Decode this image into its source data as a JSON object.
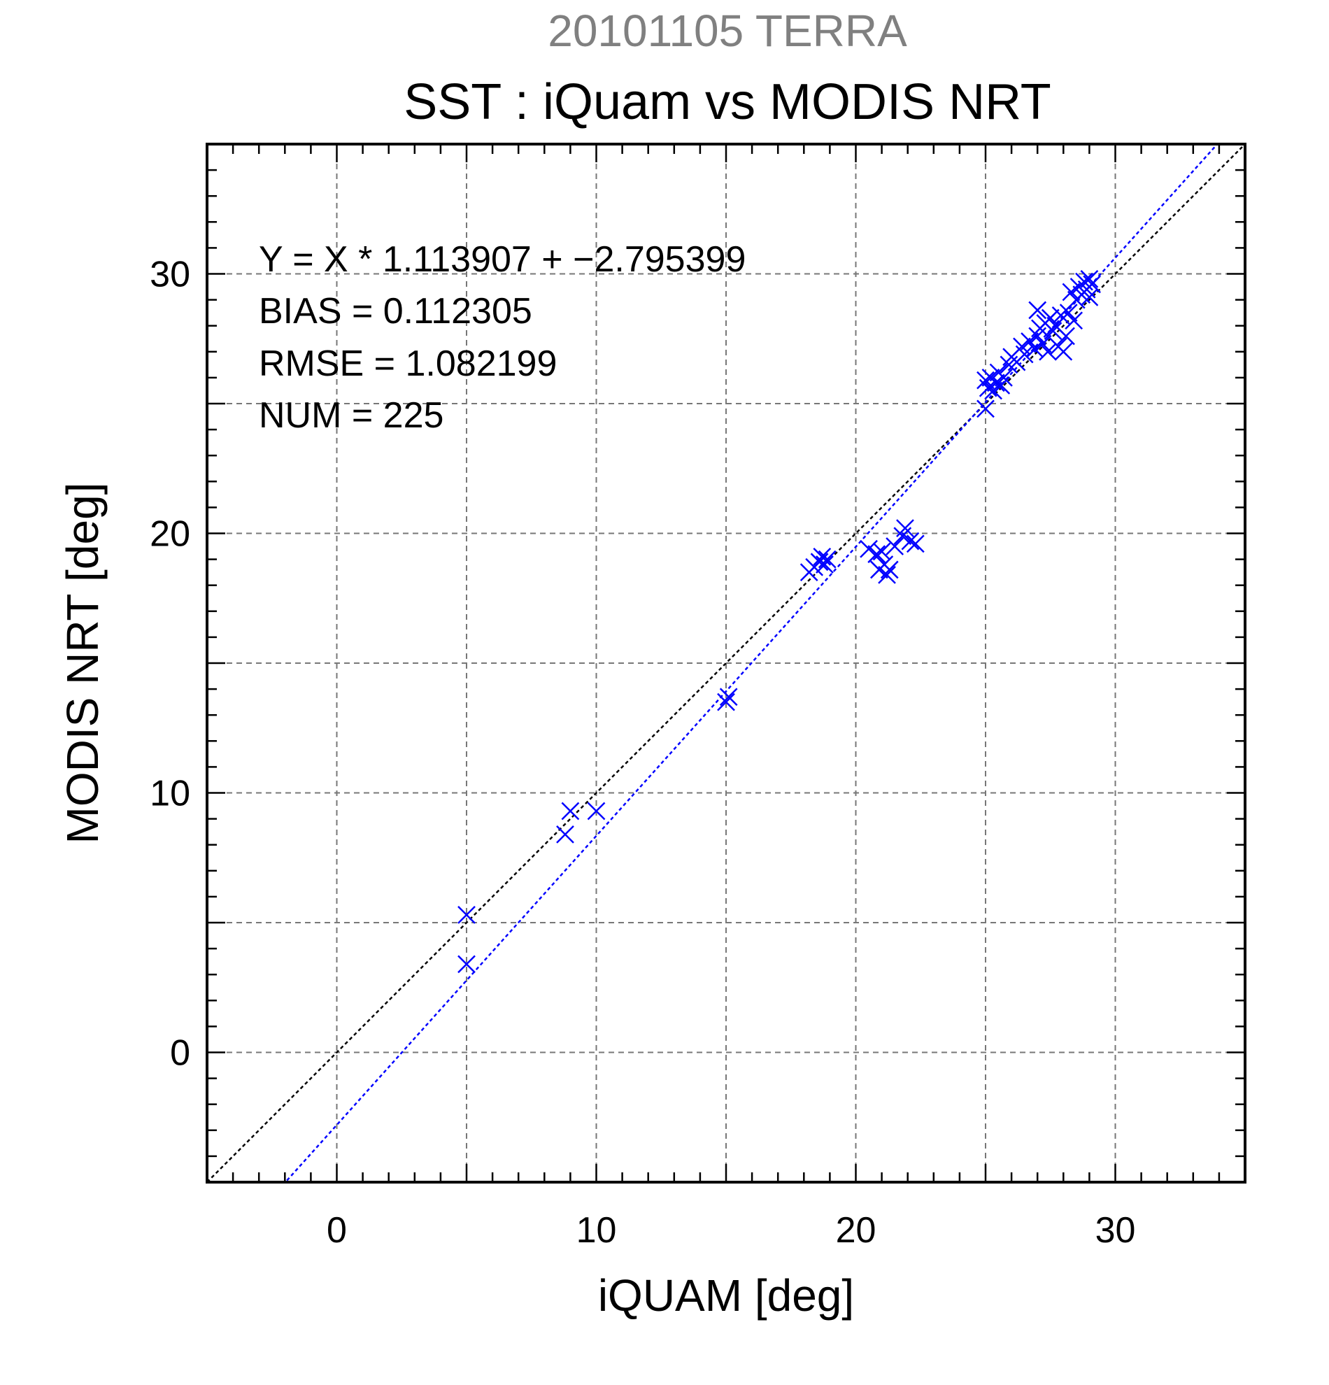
{
  "header": {
    "supertitle": "20101105 TERRA",
    "title": "SST : iQuam vs MODIS NRT"
  },
  "stats": [
    "Y = X * 1.113907 + −2.795399",
    "BIAS = 0.112305",
    "RMSE = 1.082199",
    "NUM = 225"
  ],
  "colors": {
    "points": "#0000ff",
    "fit_line": "#0000ff",
    "identity_line": "#000000",
    "grid": "#777777",
    "supertitle": "#808080"
  },
  "chart_data": {
    "type": "scatter",
    "title": "SST : iQuam vs MODIS NRT",
    "xlabel": "iQUAM [deg]",
    "ylabel": "MODIS NRT [deg]",
    "xlim": [
      -5,
      35
    ],
    "ylim": [
      -5,
      35
    ],
    "x_ticks": [
      0,
      10,
      20,
      30
    ],
    "y_ticks": [
      0,
      10,
      20,
      30
    ],
    "minor_tick_step": 1,
    "grid": true,
    "grid_step": 5,
    "marker": "x",
    "fit_line": {
      "slope": 1.113907,
      "intercept": -2.795399
    },
    "identity_line": {
      "slope": 1,
      "intercept": 0
    },
    "series": [
      {
        "points": [
          [
            5.0,
            5.3
          ],
          [
            5.0,
            3.4
          ],
          [
            8.8,
            8.4
          ],
          [
            9.0,
            9.3
          ],
          [
            10.0,
            9.3
          ],
          [
            15.0,
            13.5
          ],
          [
            15.1,
            13.7
          ],
          [
            18.2,
            18.5
          ],
          [
            18.4,
            18.7
          ],
          [
            18.6,
            18.9
          ],
          [
            18.7,
            19.1
          ],
          [
            18.8,
            18.8
          ],
          [
            18.9,
            19.0
          ],
          [
            20.5,
            19.4
          ],
          [
            20.8,
            19.2
          ],
          [
            20.9,
            18.6
          ],
          [
            21.0,
            19.3
          ],
          [
            21.1,
            18.8
          ],
          [
            21.2,
            18.4
          ],
          [
            21.3,
            18.6
          ],
          [
            21.5,
            19.5
          ],
          [
            21.8,
            19.9
          ],
          [
            21.9,
            20.2
          ],
          [
            22.1,
            19.7
          ],
          [
            22.3,
            19.6
          ],
          [
            25.0,
            24.8
          ],
          [
            25.0,
            25.9
          ],
          [
            25.1,
            25.6
          ],
          [
            25.2,
            26.0
          ],
          [
            25.3,
            25.5
          ],
          [
            25.4,
            25.8
          ],
          [
            25.5,
            26.2
          ],
          [
            25.6,
            25.7
          ],
          [
            25.7,
            26.0
          ],
          [
            25.9,
            26.5
          ],
          [
            26.0,
            26.8
          ],
          [
            26.2,
            26.6
          ],
          [
            26.4,
            27.2
          ],
          [
            26.5,
            26.9
          ],
          [
            26.7,
            27.4
          ],
          [
            26.9,
            27.1
          ],
          [
            27.0,
            27.6
          ],
          [
            27.0,
            28.6
          ],
          [
            27.1,
            27.9
          ],
          [
            27.2,
            27.3
          ],
          [
            27.3,
            28.1
          ],
          [
            27.4,
            27.0
          ],
          [
            27.5,
            28.3
          ],
          [
            27.6,
            27.8
          ],
          [
            27.7,
            28.0
          ],
          [
            27.8,
            27.2
          ],
          [
            27.9,
            28.4
          ],
          [
            28.0,
            27.0
          ],
          [
            28.1,
            27.6
          ],
          [
            28.2,
            28.5
          ],
          [
            28.3,
            29.3
          ],
          [
            28.4,
            28.2
          ],
          [
            28.5,
            29.0
          ],
          [
            28.6,
            29.5
          ],
          [
            28.7,
            29.2
          ],
          [
            28.8,
            29.7
          ],
          [
            28.9,
            29.4
          ],
          [
            29.0,
            29.8
          ],
          [
            29.0,
            29.1
          ],
          [
            29.1,
            29.6
          ]
        ]
      }
    ]
  }
}
